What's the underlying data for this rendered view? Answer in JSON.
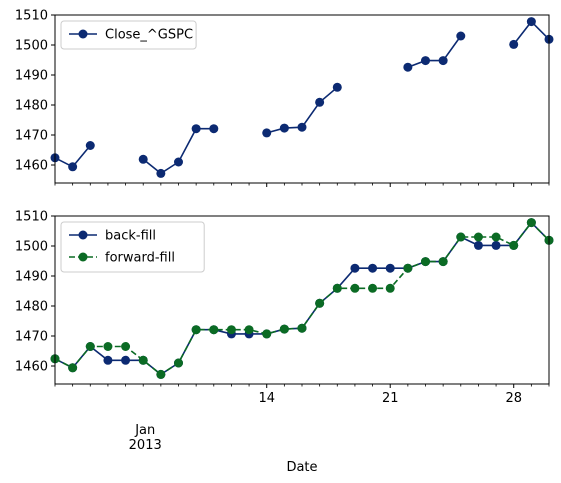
{
  "chart_data": [
    {
      "type": "line",
      "x_dates": [
        "2013-01-02",
        "2013-01-03",
        "2013-01-04",
        "2013-01-05",
        "2013-01-06",
        "2013-01-07",
        "2013-01-08",
        "2013-01-09",
        "2013-01-10",
        "2013-01-11",
        "2013-01-12",
        "2013-01-13",
        "2013-01-14",
        "2013-01-15",
        "2013-01-16",
        "2013-01-17",
        "2013-01-18",
        "2013-01-19",
        "2013-01-20",
        "2013-01-21",
        "2013-01-22",
        "2013-01-23",
        "2013-01-24",
        "2013-01-25",
        "2013-01-26",
        "2013-01-27",
        "2013-01-28",
        "2013-01-29",
        "2013-01-30"
      ],
      "series": [
        {
          "name": "Close_^GSPC",
          "color": "#0c2a72",
          "linestyle": "solid",
          "values": [
            1462.4,
            1459.4,
            1466.5,
            null,
            null,
            1461.9,
            1457.2,
            1461.0,
            1472.1,
            1472.1,
            null,
            null,
            1470.7,
            1472.3,
            1472.6,
            1480.9,
            1485.9,
            null,
            null,
            null,
            1492.6,
            1494.8,
            1494.8,
            1503.0,
            null,
            null,
            1500.2,
            1507.8,
            1501.9
          ]
        }
      ],
      "ylim": [
        1454,
        1510
      ],
      "yticks": [
        1460,
        1470,
        1480,
        1490,
        1500,
        1510
      ],
      "legend": "upper-left",
      "grid": false
    },
    {
      "type": "line",
      "x_dates": [
        "2013-01-02",
        "2013-01-03",
        "2013-01-04",
        "2013-01-05",
        "2013-01-06",
        "2013-01-07",
        "2013-01-08",
        "2013-01-09",
        "2013-01-10",
        "2013-01-11",
        "2013-01-12",
        "2013-01-13",
        "2013-01-14",
        "2013-01-15",
        "2013-01-16",
        "2013-01-17",
        "2013-01-18",
        "2013-01-19",
        "2013-01-20",
        "2013-01-21",
        "2013-01-22",
        "2013-01-23",
        "2013-01-24",
        "2013-01-25",
        "2013-01-26",
        "2013-01-27",
        "2013-01-28",
        "2013-01-29",
        "2013-01-30"
      ],
      "series": [
        {
          "name": "back-fill",
          "color": "#0c2a72",
          "linestyle": "solid",
          "values": [
            1462.4,
            1459.4,
            1466.5,
            1461.9,
            1461.9,
            1461.9,
            1457.2,
            1461.0,
            1472.1,
            1472.1,
            1470.7,
            1470.7,
            1470.7,
            1472.3,
            1472.6,
            1480.9,
            1485.9,
            1492.6,
            1492.6,
            1492.6,
            1492.6,
            1494.8,
            1494.8,
            1503.0,
            1500.2,
            1500.2,
            1500.2,
            1507.8,
            1501.9
          ]
        },
        {
          "name": "forward-fill",
          "color": "#0b6b24",
          "linestyle": "dashed",
          "values": [
            1462.4,
            1459.4,
            1466.5,
            1466.5,
            1466.5,
            1461.9,
            1457.2,
            1461.0,
            1472.1,
            1472.1,
            1472.1,
            1472.1,
            1470.7,
            1472.3,
            1472.6,
            1480.9,
            1485.9,
            1485.9,
            1485.9,
            1485.9,
            1492.6,
            1494.8,
            1494.8,
            1503.0,
            1503.0,
            1503.0,
            1500.2,
            1507.8,
            1501.9
          ]
        }
      ],
      "ylim": [
        1454,
        1510
      ],
      "yticks": [
        1460,
        1470,
        1480,
        1490,
        1500,
        1510
      ],
      "legend": "upper-left",
      "grid": false
    }
  ],
  "x_axis": {
    "label": "Date",
    "major_ticks": [
      {
        "date": "2013-01-14",
        "label": "14"
      },
      {
        "date": "2013-01-21",
        "label": "21"
      },
      {
        "date": "2013-01-28",
        "label": "28"
      }
    ],
    "month_label_date": "2013-01-07",
    "month_label_lines": [
      "Jan",
      "2013"
    ],
    "minor_ticks": [
      "2013-01-02",
      "2013-01-03",
      "2013-01-04",
      "2013-01-05",
      "2013-01-06",
      "2013-01-07",
      "2013-01-08",
      "2013-01-09",
      "2013-01-10",
      "2013-01-11",
      "2013-01-12",
      "2013-01-13",
      "2013-01-15",
      "2013-01-16",
      "2013-01-17",
      "2013-01-18",
      "2013-01-19",
      "2013-01-20",
      "2013-01-22",
      "2013-01-23",
      "2013-01-24",
      "2013-01-25",
      "2013-01-26",
      "2013-01-27",
      "2013-01-29",
      "2013-01-30"
    ]
  }
}
